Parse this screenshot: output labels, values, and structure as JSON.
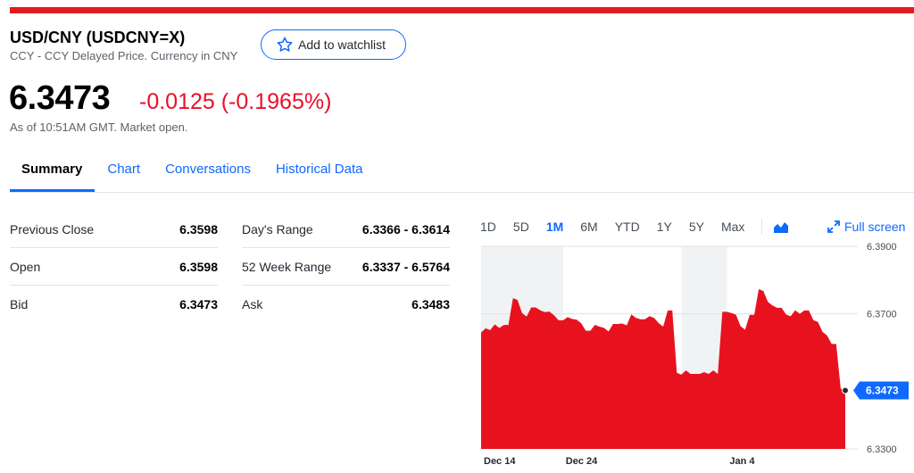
{
  "header": {
    "title": "USD/CNY (USDCNY=X)",
    "subtitle": "CCY - CCY Delayed Price. Currency in CNY",
    "watchlist_label": "Add to watchlist"
  },
  "quote": {
    "price": "6.3473",
    "change": "-0.0125 (-0.1965%)",
    "as_of": "As of 10:51AM GMT. Market open."
  },
  "tabs": [
    {
      "label": "Summary",
      "active": true
    },
    {
      "label": "Chart"
    },
    {
      "label": "Conversations"
    },
    {
      "label": "Historical Data"
    }
  ],
  "stats_left": [
    {
      "label": "Previous Close",
      "value": "6.3598"
    },
    {
      "label": "Open",
      "value": "6.3598"
    },
    {
      "label": "Bid",
      "value": "6.3473"
    }
  ],
  "stats_right": [
    {
      "label": "Day's Range",
      "value": "6.3366 - 6.3614"
    },
    {
      "label": "52 Week Range",
      "value": "6.3337 - 6.5764"
    },
    {
      "label": "Ask",
      "value": "6.3483"
    }
  ],
  "chart_controls": {
    "ranges": [
      "1D",
      "5D",
      "1M",
      "6M",
      "YTD",
      "1Y",
      "5Y",
      "Max"
    ],
    "active_range": "1M",
    "fullscreen_label": "Full screen",
    "chart_type_icon": "area-chart-icon"
  },
  "colors": {
    "brand_red": "#e31b23",
    "negative": "#eb0f29",
    "link_blue": "#0f69ff",
    "area_fill": "#e8121f"
  },
  "chart_data": {
    "type": "area",
    "x_tick_labels": [
      "Dec 14",
      "Dec 24",
      "Jan 4"
    ],
    "y_tick_labels": [
      "6.3900",
      "6.3700",
      "6.3300"
    ],
    "ylim": [
      6.33,
      6.39
    ],
    "y_ticks": [
      6.39,
      6.37,
      6.33
    ],
    "current_value": 6.3473,
    "current_label": "6.3473",
    "x_points": 41,
    "values": [
      6.3645,
      6.3652,
      6.3658,
      6.3667,
      6.3741,
      6.3692,
      6.3719,
      6.3705,
      6.3696,
      6.3681,
      6.3685,
      6.3672,
      6.365,
      6.3662,
      6.3648,
      6.367,
      6.3666,
      6.3688,
      6.3684,
      6.3688,
      6.3662,
      6.371,
      6.352,
      6.3522,
      6.3522,
      6.3522,
      6.3522,
      6.3706,
      6.3697,
      6.3653,
      6.3697,
      6.3768,
      6.3725,
      6.3718,
      6.3693,
      6.37,
      6.371,
      6.3676,
      6.3636,
      6.3611,
      6.3473
    ],
    "shaded_bands": [
      [
        0,
        9
      ],
      [
        22,
        27
      ]
    ]
  }
}
